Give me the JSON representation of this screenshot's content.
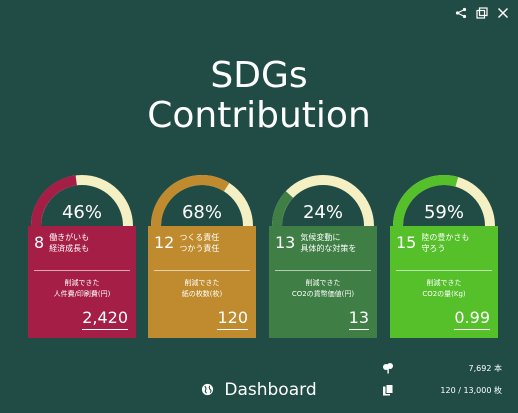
{
  "header": {
    "title_line1": "SDGs",
    "title_line2": "Contribution"
  },
  "toolbar": {
    "icons": [
      "share-icon",
      "popout-icon",
      "close-icon"
    ]
  },
  "cards": [
    {
      "percent": 0.46,
      "percent_label": "46%",
      "goal_number": "8",
      "goal_text": "働きがいも\n経済成長も",
      "metric_label": "削減できた\n人件費/印刷費(円)",
      "value": "2,420",
      "color": "#a41e46"
    },
    {
      "percent": 0.68,
      "percent_label": "68%",
      "goal_number": "12",
      "goal_text": "つくる責任\nつかう責任",
      "metric_label": "削減できた\n紙の枚数(枚)",
      "value": "120",
      "color": "#bf8b2e"
    },
    {
      "percent": 0.24,
      "percent_label": "24%",
      "goal_number": "13",
      "goal_text": "気候変動に\n具体的な対策を",
      "metric_label": "削減できた\nCO2の貨幣価値(円)",
      "value": "13",
      "color": "#3f7e44"
    },
    {
      "percent": 0.59,
      "percent_label": "59%",
      "goal_number": "15",
      "goal_text": "陸の豊かさも\n守ろう",
      "metric_label": "削減できた\nCO2の量(Kg)",
      "value": "0.99",
      "color": "#56c02b"
    }
  ],
  "gauge_track_color": "#f4f0c4",
  "stats": {
    "trees": "7,692 本",
    "sheets": "120 / 13,000 枚"
  },
  "footer": {
    "label": "Dashboard"
  }
}
